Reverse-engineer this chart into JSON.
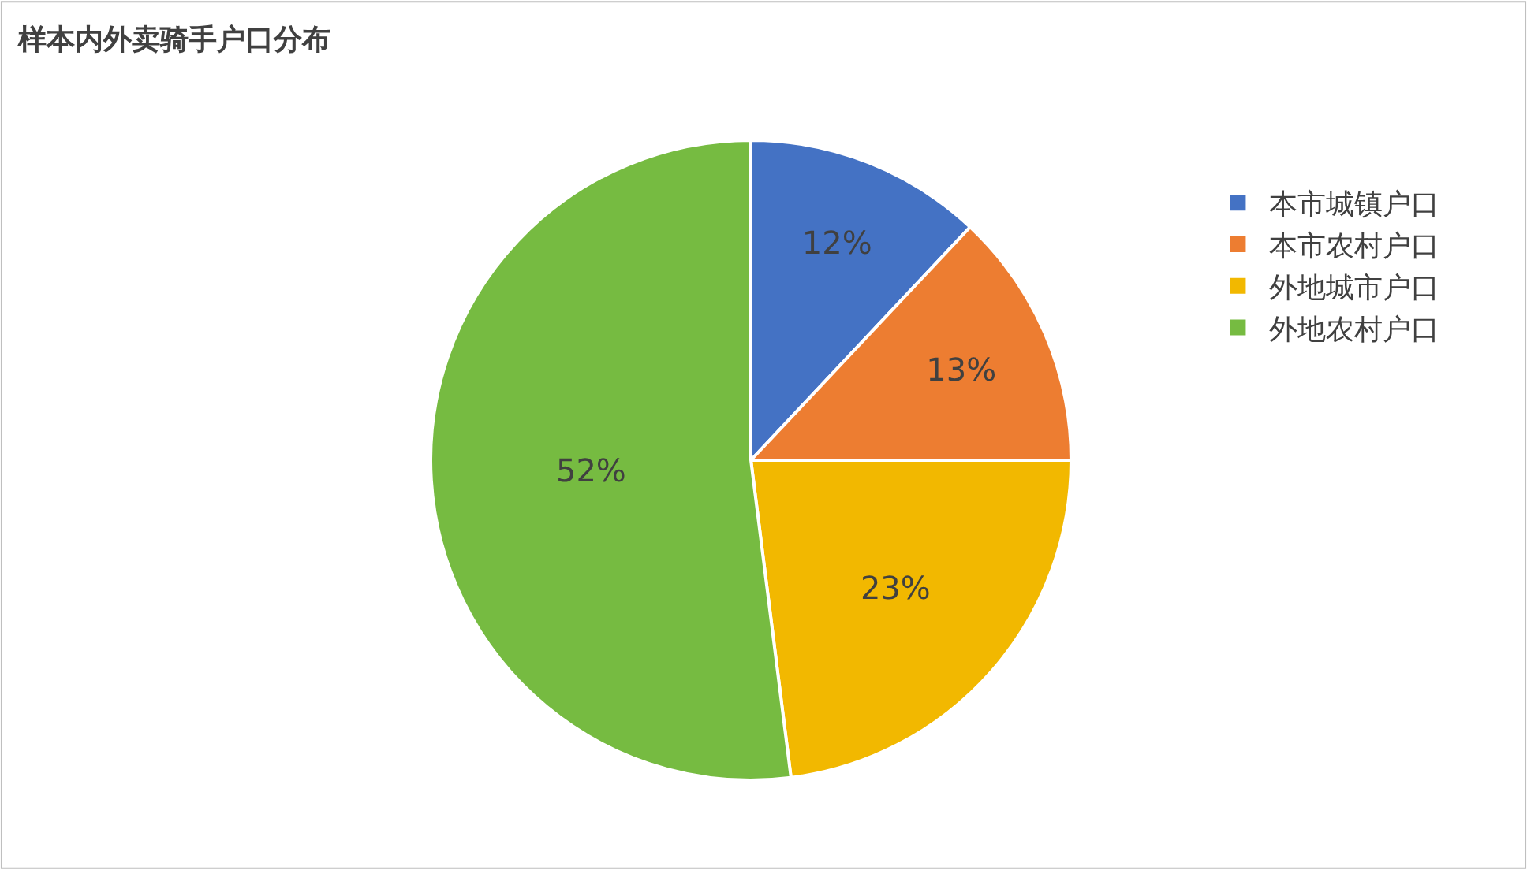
{
  "chart_data": {
    "type": "pie",
    "title": "样本内外卖骑手户口分布",
    "categories": [
      "本市城镇户口",
      "本市农村户口",
      "外地城市户口",
      "外地农村户口"
    ],
    "values": [
      12,
      13,
      23,
      52
    ],
    "colors": [
      "#4472c4",
      "#ed7d31",
      "#f2b800",
      "#76bb41"
    ],
    "value_labels": [
      "12%",
      "13%",
      "23%",
      "52%"
    ],
    "legend": "right"
  }
}
